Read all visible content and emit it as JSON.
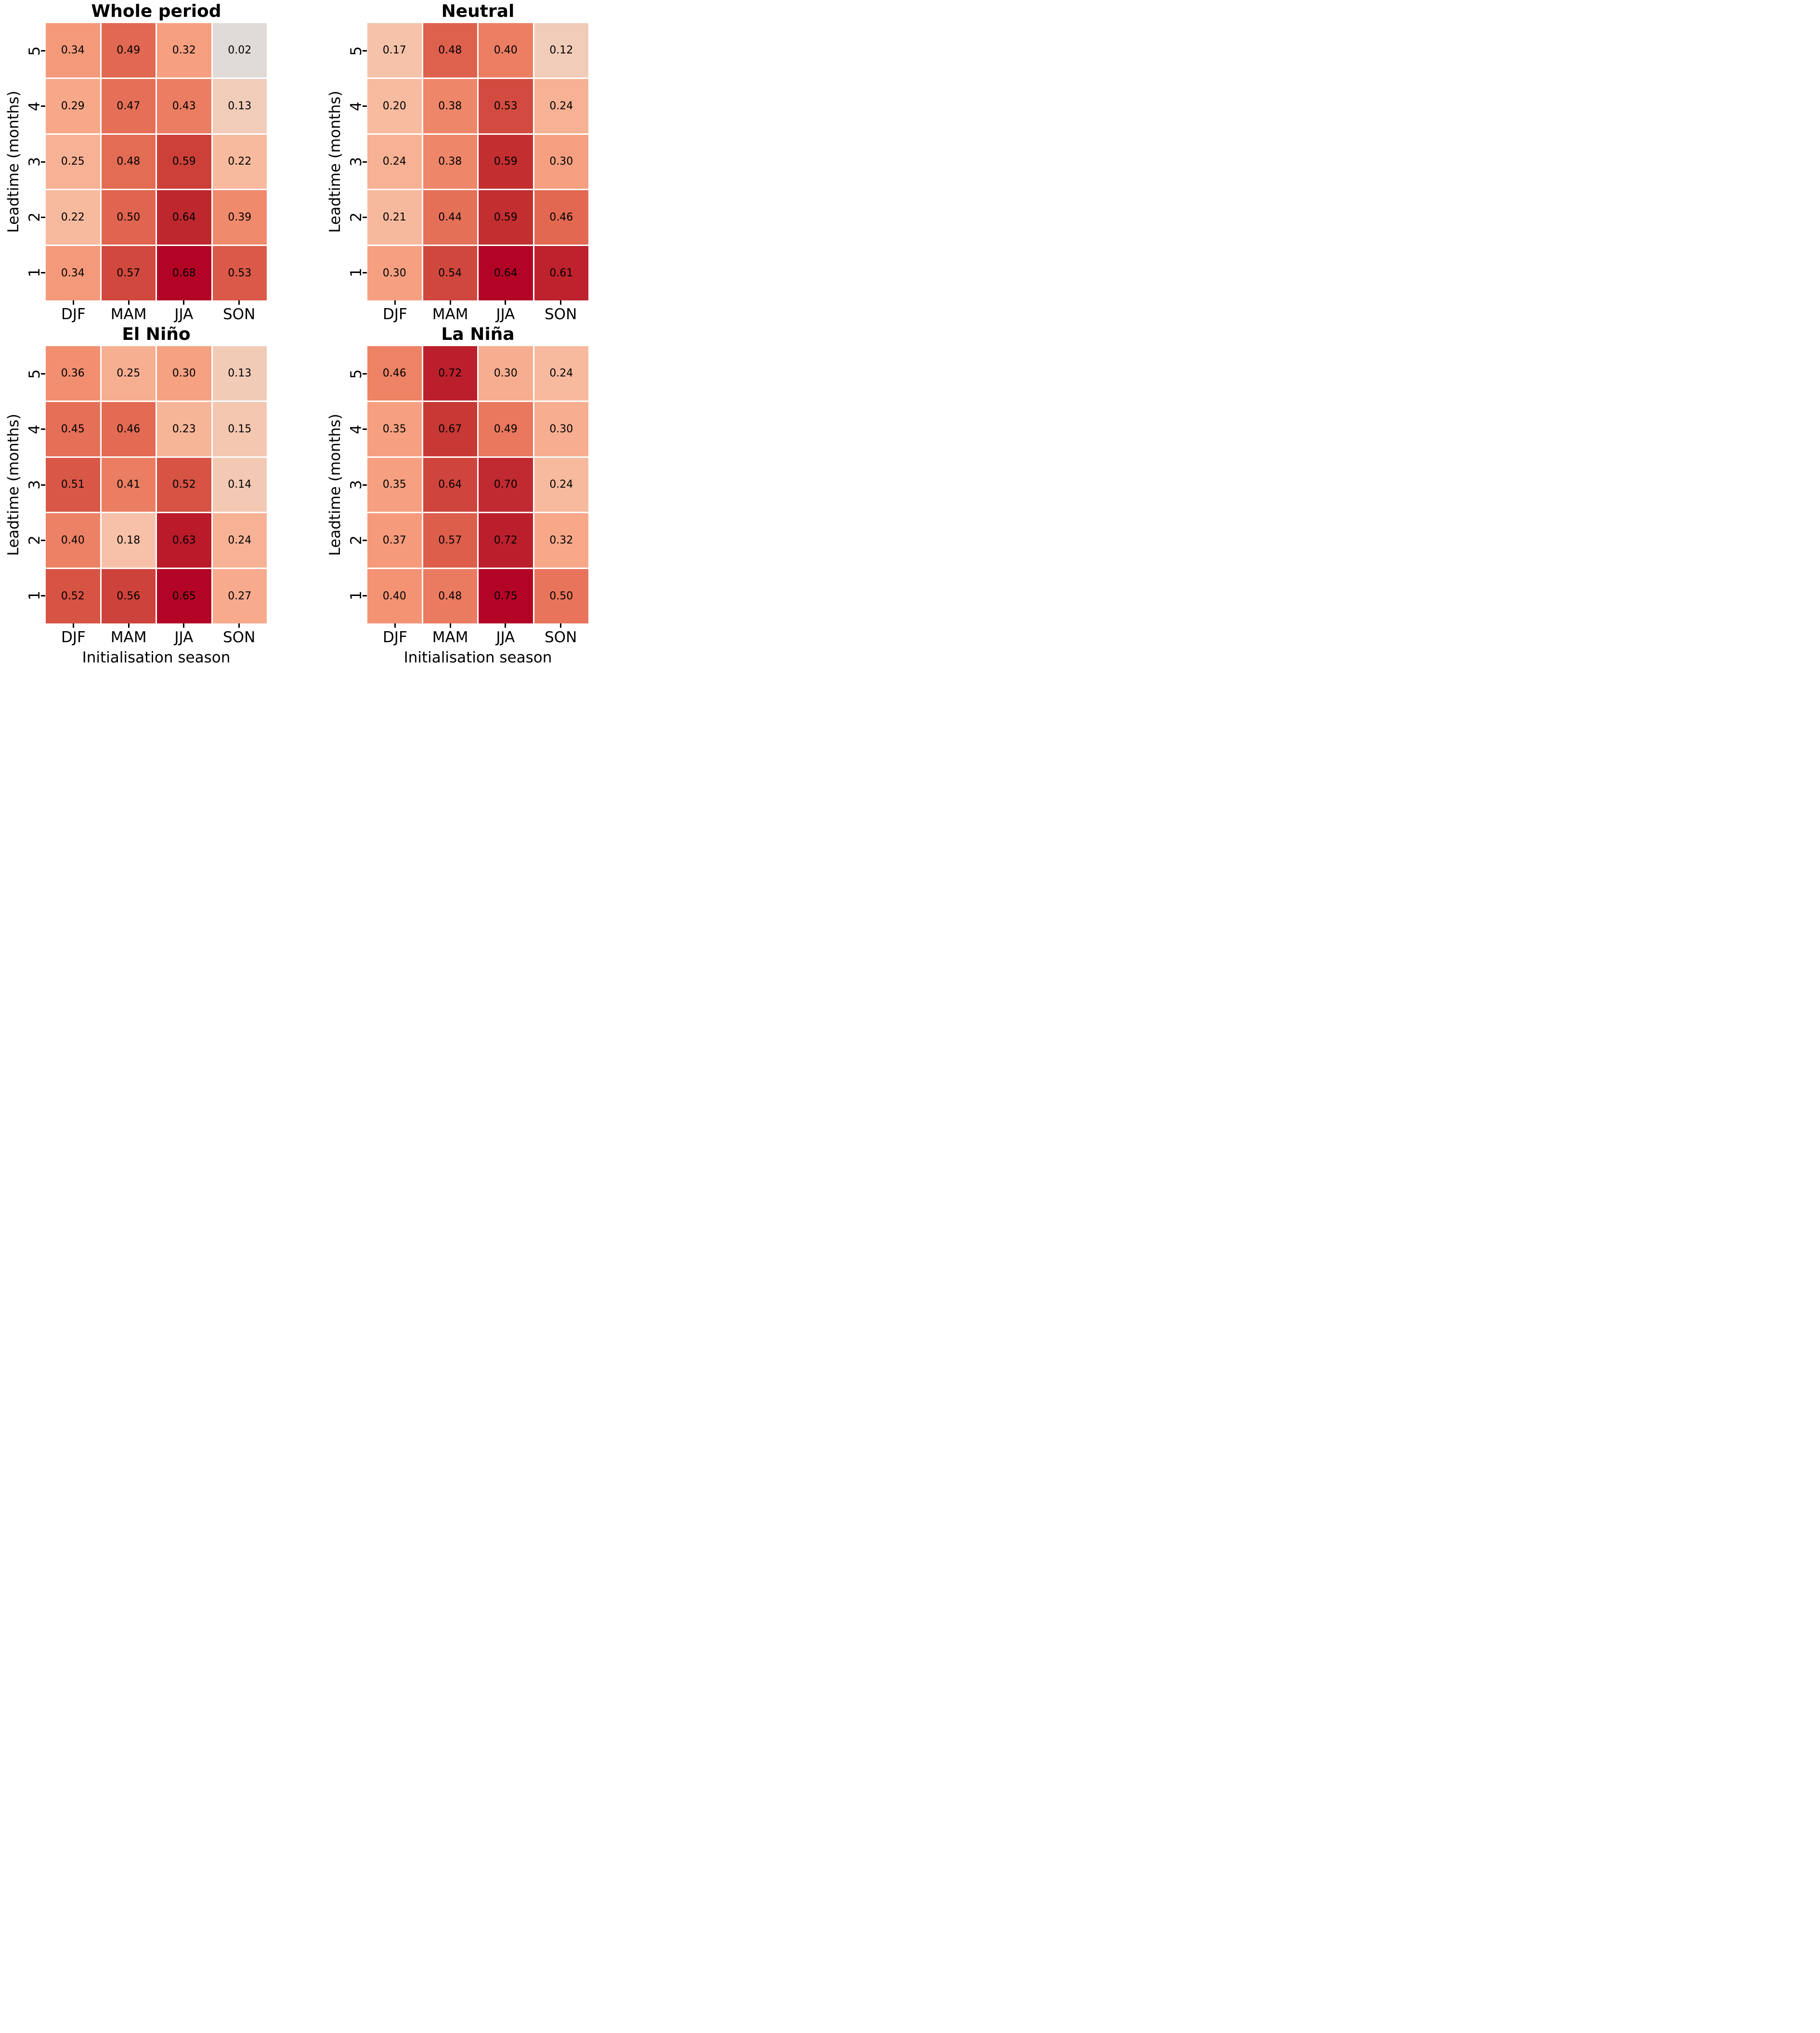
{
  "figure": {
    "background": "#ffffff",
    "text_color": "#000000",
    "colormap": "coolwarm",
    "colormap_center_color": "#dddddd",
    "colormap_max_color": "#b40426",
    "annotation_text_color": "#000000"
  },
  "chart_data": [
    {
      "type": "heatmap",
      "title": "Whole period",
      "position": "top-left",
      "ylabel": "Leadtime (months)",
      "xlabel": "",
      "rows": [
        "5",
        "4",
        "3",
        "2",
        "1"
      ],
      "columns": [
        "DJF",
        "MAM",
        "JJA",
        "SON"
      ],
      "values": [
        [
          0.34,
          0.49,
          0.32,
          0.02
        ],
        [
          0.29,
          0.47,
          0.43,
          0.13
        ],
        [
          0.25,
          0.48,
          0.59,
          0.22
        ],
        [
          0.22,
          0.5,
          0.64,
          0.39
        ],
        [
          0.34,
          0.57,
          0.68,
          0.53
        ]
      ],
      "colormap": "coolwarm",
      "vmin": -0.68,
      "vmax": 0.68,
      "value_format": "0.00",
      "grid": "off",
      "legend": "none"
    },
    {
      "type": "heatmap",
      "title": "Neutral",
      "position": "top-right",
      "ylabel": "Leadtime (months)",
      "xlabel": "",
      "rows": [
        "5",
        "4",
        "3",
        "2",
        "1"
      ],
      "columns": [
        "DJF",
        "MAM",
        "JJA",
        "SON"
      ],
      "values": [
        [
          0.17,
          0.48,
          0.4,
          0.12
        ],
        [
          0.2,
          0.38,
          0.53,
          0.24
        ],
        [
          0.24,
          0.38,
          0.59,
          0.3
        ],
        [
          0.21,
          0.44,
          0.59,
          0.46
        ],
        [
          0.3,
          0.54,
          0.64,
          0.61
        ]
      ],
      "colormap": "coolwarm",
      "vmin": -0.64,
      "vmax": 0.64,
      "value_format": "0.00",
      "grid": "off",
      "legend": "none"
    },
    {
      "type": "heatmap",
      "title": "El Niño",
      "position": "bottom-left",
      "ylabel": "Leadtime (months)",
      "xlabel": "Initialisation season",
      "rows": [
        "5",
        "4",
        "3",
        "2",
        "1"
      ],
      "columns": [
        "DJF",
        "MAM",
        "JJA",
        "SON"
      ],
      "values": [
        [
          0.36,
          0.25,
          0.3,
          0.13
        ],
        [
          0.45,
          0.46,
          0.23,
          0.15
        ],
        [
          0.51,
          0.41,
          0.52,
          0.14
        ],
        [
          0.4,
          0.18,
          0.63,
          0.24
        ],
        [
          0.52,
          0.56,
          0.65,
          0.27
        ]
      ],
      "colormap": "coolwarm",
      "vmin": -0.65,
      "vmax": 0.65,
      "value_format": "0.00",
      "grid": "off",
      "legend": "none"
    },
    {
      "type": "heatmap",
      "title": "La Niña",
      "position": "bottom-right",
      "ylabel": "Leadtime (months)",
      "xlabel": "Initialisation season",
      "rows": [
        "5",
        "4",
        "3",
        "2",
        "1"
      ],
      "columns": [
        "DJF",
        "MAM",
        "JJA",
        "SON"
      ],
      "values": [
        [
          0.46,
          0.72,
          0.3,
          0.24
        ],
        [
          0.35,
          0.67,
          0.49,
          0.3
        ],
        [
          0.35,
          0.64,
          0.7,
          0.24
        ],
        [
          0.37,
          0.57,
          0.72,
          0.32
        ],
        [
          0.4,
          0.48,
          0.75,
          0.5
        ]
      ],
      "colormap": "coolwarm",
      "vmin": -0.75,
      "vmax": 0.75,
      "value_format": "0.00",
      "grid": "off",
      "legend": "none"
    }
  ]
}
